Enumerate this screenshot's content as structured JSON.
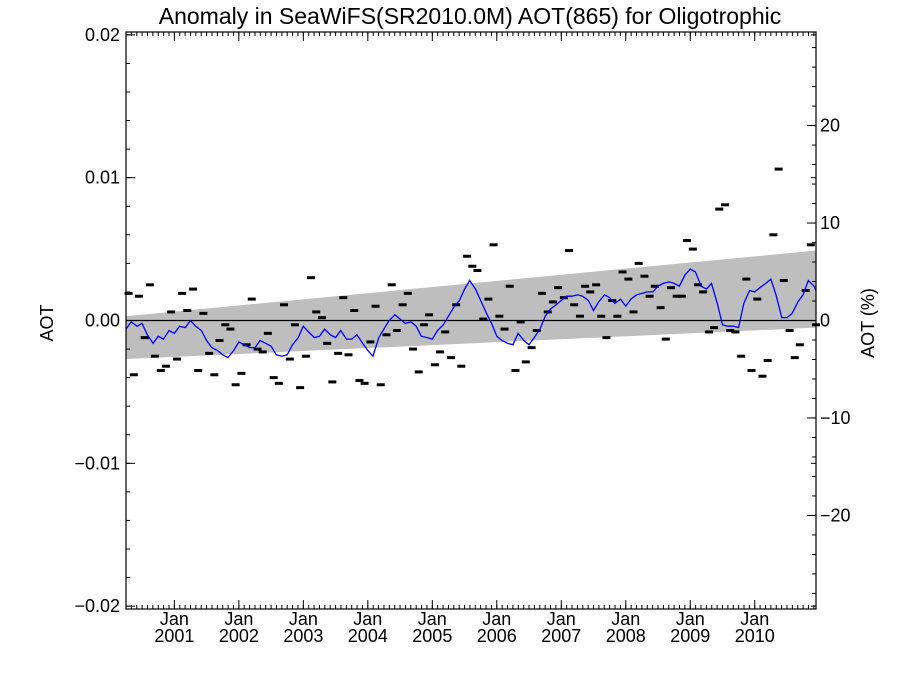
{
  "chart_data": {
    "type": "scatter",
    "title": "Anomaly in SeaWiFS(SR2010.0M) AOT(865) for Oligotrophic",
    "ylabel_left": "AOT",
    "ylabel_right": "AOT (%)",
    "xlabel": "",
    "x_range": [
      2000.25,
      2010.95
    ],
    "ylim": [
      -0.0202,
      0.0202
    ],
    "ylim_right_percent": [
      -29.6,
      29.6
    ],
    "left_ticks": [
      "0.02",
      "0.01",
      "0.00",
      "−0.01",
      "−0.02"
    ],
    "left_tick_values": [
      0.02,
      0.01,
      0.0,
      -0.01,
      -0.02
    ],
    "right_ticks": [
      "20",
      "10",
      "0",
      "−10",
      "−20"
    ],
    "right_tick_values": [
      20,
      10,
      0,
      -10,
      -20
    ],
    "x_ticks": [
      {
        "value": 2001.0,
        "month": "Jan",
        "year": "2001"
      },
      {
        "value": 2002.0,
        "month": "Jan",
        "year": "2002"
      },
      {
        "value": 2003.0,
        "month": "Jan",
        "year": "2003"
      },
      {
        "value": 2004.0,
        "month": "Jan",
        "year": "2004"
      },
      {
        "value": 2005.0,
        "month": "Jan",
        "year": "2005"
      },
      {
        "value": 2006.0,
        "month": "Jan",
        "year": "2006"
      },
      {
        "value": 2007.0,
        "month": "Jan",
        "year": "2007"
      },
      {
        "value": 2008.0,
        "month": "Jan",
        "year": "2008"
      },
      {
        "value": 2009.0,
        "month": "Jan",
        "year": "2009"
      },
      {
        "value": 2010.0,
        "month": "Jan",
        "year": "2010"
      }
    ],
    "trend_band": {
      "x": [
        2000.25,
        2010.95
      ],
      "upper": [
        0.0003,
        0.0049
      ],
      "lower": [
        -0.0027,
        -0.0005
      ],
      "color": "#bebebe"
    },
    "zero_line": 0.0,
    "series": [
      {
        "kind": "markers",
        "color": "#000000",
        "points": [
          [
            2000.29,
            0.0019
          ],
          [
            2000.37,
            -0.0038
          ],
          [
            2000.45,
            0.0017
          ],
          [
            2000.54,
            -0.0012
          ],
          [
            2000.62,
            0.0025
          ],
          [
            2000.7,
            -0.0025
          ],
          [
            2000.79,
            -0.0035
          ],
          [
            2000.87,
            -0.0032
          ],
          [
            2000.95,
            0.0006
          ],
          [
            2001.04,
            -0.0027
          ],
          [
            2001.12,
            0.0019
          ],
          [
            2001.2,
            0.0007
          ],
          [
            2001.29,
            0.0022
          ],
          [
            2001.37,
            -0.0035
          ],
          [
            2001.45,
            0.0005
          ],
          [
            2001.54,
            -0.0023
          ],
          [
            2001.62,
            -0.0038
          ],
          [
            2001.7,
            -0.0014
          ],
          [
            2001.79,
            -0.0003
          ],
          [
            2001.87,
            -0.0006
          ],
          [
            2001.95,
            -0.0045
          ],
          [
            2002.04,
            -0.0037
          ],
          [
            2002.12,
            -0.0017
          ],
          [
            2002.2,
            0.0015
          ],
          [
            2002.29,
            -0.002
          ],
          [
            2002.37,
            -0.0022
          ],
          [
            2002.45,
            -0.0009
          ],
          [
            2002.54,
            -0.004
          ],
          [
            2002.62,
            -0.0044
          ],
          [
            2002.7,
            0.0011
          ],
          [
            2002.79,
            -0.0027
          ],
          [
            2002.87,
            -0.0003
          ],
          [
            2002.95,
            -0.0047
          ],
          [
            2003.04,
            -0.0025
          ],
          [
            2003.12,
            0.003
          ],
          [
            2003.2,
            0.0006
          ],
          [
            2003.29,
            0.0002
          ],
          [
            2003.37,
            -0.0016
          ],
          [
            2003.45,
            -0.0043
          ],
          [
            2003.54,
            -0.0023
          ],
          [
            2003.62,
            0.0016
          ],
          [
            2003.7,
            -0.0024
          ],
          [
            2003.79,
            0.0007
          ],
          [
            2003.87,
            -0.0042
          ],
          [
            2003.95,
            -0.0044
          ],
          [
            2004.04,
            -0.0015
          ],
          [
            2004.12,
            0.001
          ],
          [
            2004.2,
            -0.0045
          ],
          [
            2004.29,
            -0.001
          ],
          [
            2004.37,
            0.0025
          ],
          [
            2004.45,
            -0.0007
          ],
          [
            2004.54,
            0.0011
          ],
          [
            2004.62,
            0.0019
          ],
          [
            2004.7,
            -0.002
          ],
          [
            2004.79,
            -0.0036
          ],
          [
            2004.87,
            -0.0003
          ],
          [
            2004.95,
            0.0004
          ],
          [
            2005.04,
            -0.0031
          ],
          [
            2005.12,
            -0.0022
          ],
          [
            2005.2,
            -0.0008
          ],
          [
            2005.29,
            -0.0026
          ],
          [
            2005.37,
            0.0011
          ],
          [
            2005.45,
            -0.0032
          ],
          [
            2005.54,
            0.0045
          ],
          [
            2005.62,
            0.0038
          ],
          [
            2005.7,
            0.0035
          ],
          [
            2005.79,
            0.0001
          ],
          [
            2005.87,
            0.0015
          ],
          [
            2005.95,
            0.0053
          ],
          [
            2006.04,
            0.0003
          ],
          [
            2006.12,
            -0.0006
          ],
          [
            2006.2,
            0.0024
          ],
          [
            2006.29,
            -0.0035
          ],
          [
            2006.37,
            -0.0001
          ],
          [
            2006.45,
            -0.0029
          ],
          [
            2006.54,
            -0.0019
          ],
          [
            2006.62,
            -0.0007
          ],
          [
            2006.7,
            0.0019
          ],
          [
            2006.79,
            0.0006
          ],
          [
            2006.87,
            0.0013
          ],
          [
            2006.95,
            0.0023
          ],
          [
            2007.04,
            0.0016
          ],
          [
            2007.12,
            0.0049
          ],
          [
            2007.2,
            0.0011
          ],
          [
            2007.29,
            0.0003
          ],
          [
            2007.37,
            0.0024
          ],
          [
            2007.45,
            0.002
          ],
          [
            2007.54,
            0.0025
          ],
          [
            2007.62,
            0.0003
          ],
          [
            2007.7,
            -0.0012
          ],
          [
            2007.79,
            0.0014
          ],
          [
            2007.87,
            0.0003
          ],
          [
            2007.95,
            0.0034
          ],
          [
            2008.04,
            0.0029
          ],
          [
            2008.12,
            0.0006
          ],
          [
            2008.2,
            0.004
          ],
          [
            2008.29,
            0.0031
          ],
          [
            2008.37,
            0.0017
          ],
          [
            2008.45,
            0.0024
          ],
          [
            2008.54,
            0.0009
          ],
          [
            2008.62,
            -0.0013
          ],
          [
            2008.7,
            0.0023
          ],
          [
            2008.79,
            0.0017
          ],
          [
            2008.87,
            0.0017
          ],
          [
            2008.95,
            0.0056
          ],
          [
            2009.04,
            0.005
          ],
          [
            2009.12,
            0.0025
          ],
          [
            2009.2,
            0.002
          ],
          [
            2009.29,
            -0.0008
          ],
          [
            2009.37,
            -0.0005
          ],
          [
            2009.45,
            0.0078
          ],
          [
            2009.54,
            0.0081
          ],
          [
            2009.62,
            -0.0007
          ],
          [
            2009.7,
            -0.0008
          ],
          [
            2009.79,
            -0.0025
          ],
          [
            2009.87,
            0.0029
          ],
          [
            2009.95,
            -0.0035
          ],
          [
            2010.04,
            0.0015
          ],
          [
            2010.12,
            -0.0039
          ],
          [
            2010.2,
            -0.0028
          ],
          [
            2010.29,
            0.006
          ],
          [
            2010.37,
            0.0106
          ],
          [
            2010.45,
            0.0028
          ],
          [
            2010.54,
            -0.0007
          ],
          [
            2010.62,
            -0.0026
          ],
          [
            2010.7,
            -0.0017
          ],
          [
            2010.79,
            0.0021
          ],
          [
            2010.87,
            0.0053
          ],
          [
            2010.95,
            -0.0003
          ]
        ]
      },
      {
        "kind": "line",
        "color": "#0000ff",
        "points": [
          [
            2000.25,
            -0.0006
          ],
          [
            2000.33,
            -0.0001
          ],
          [
            2000.42,
            -0.0004
          ],
          [
            2000.5,
            -0.0002
          ],
          [
            2000.58,
            -0.001
          ],
          [
            2000.67,
            -0.0016
          ],
          [
            2000.75,
            -0.0011
          ],
          [
            2000.83,
            -0.0013
          ],
          [
            2000.92,
            -0.0007
          ],
          [
            2001.0,
            -0.0009
          ],
          [
            2001.08,
            -0.0004
          ],
          [
            2001.17,
            -0.0005
          ],
          [
            2001.25,
            0.0
          ],
          [
            2001.33,
            -0.0004
          ],
          [
            2001.42,
            -0.0007
          ],
          [
            2001.5,
            -0.0014
          ],
          [
            2001.58,
            -0.0019
          ],
          [
            2001.67,
            -0.0021
          ],
          [
            2001.75,
            -0.0024
          ],
          [
            2001.83,
            -0.0026
          ],
          [
            2001.92,
            -0.0021
          ],
          [
            2002.0,
            -0.0015
          ],
          [
            2002.08,
            -0.0017
          ],
          [
            2002.17,
            -0.0019
          ],
          [
            2002.25,
            -0.0019
          ],
          [
            2002.33,
            -0.0014
          ],
          [
            2002.42,
            -0.0016
          ],
          [
            2002.5,
            -0.0018
          ],
          [
            2002.58,
            -0.0024
          ],
          [
            2002.67,
            -0.0025
          ],
          [
            2002.75,
            -0.0024
          ],
          [
            2002.83,
            -0.0017
          ],
          [
            2002.92,
            -0.0012
          ],
          [
            2003.0,
            -0.0004
          ],
          [
            2003.08,
            -0.0008
          ],
          [
            2003.17,
            -0.0012
          ],
          [
            2003.25,
            -0.0011
          ],
          [
            2003.33,
            -0.0006
          ],
          [
            2003.42,
            -0.001
          ],
          [
            2003.5,
            -0.0012
          ],
          [
            2003.58,
            -0.0007
          ],
          [
            2003.67,
            -0.0013
          ],
          [
            2003.75,
            -0.0013
          ],
          [
            2003.83,
            -0.001
          ],
          [
            2003.92,
            -0.0016
          ],
          [
            2004.0,
            -0.0021
          ],
          [
            2004.08,
            -0.0025
          ],
          [
            2004.17,
            -0.0012
          ],
          [
            2004.25,
            -0.0006
          ],
          [
            2004.33,
            0.0
          ],
          [
            2004.42,
            0.0004
          ],
          [
            2004.5,
            0.0001
          ],
          [
            2004.58,
            -0.0002
          ],
          [
            2004.67,
            -0.0001
          ],
          [
            2004.75,
            -0.0004
          ],
          [
            2004.83,
            -0.0011
          ],
          [
            2004.92,
            -0.0012
          ],
          [
            2005.0,
            -0.0013
          ],
          [
            2005.08,
            -0.0007
          ],
          [
            2005.17,
            -0.0003
          ],
          [
            2005.25,
            0.0003
          ],
          [
            2005.33,
            0.0009
          ],
          [
            2005.42,
            0.0014
          ],
          [
            2005.5,
            0.0022
          ],
          [
            2005.58,
            0.0028
          ],
          [
            2005.67,
            0.0022
          ],
          [
            2005.75,
            0.0014
          ],
          [
            2005.83,
            0.0006
          ],
          [
            2005.92,
            -0.0002
          ],
          [
            2006.0,
            -0.0011
          ],
          [
            2006.08,
            -0.0014
          ],
          [
            2006.17,
            -0.0016
          ],
          [
            2006.25,
            -0.0017
          ],
          [
            2006.33,
            -0.0009
          ],
          [
            2006.42,
            -0.0014
          ],
          [
            2006.5,
            -0.0017
          ],
          [
            2006.58,
            -0.0012
          ],
          [
            2006.67,
            -0.0006
          ],
          [
            2006.75,
            0.0003
          ],
          [
            2006.83,
            0.0008
          ],
          [
            2006.92,
            0.0011
          ],
          [
            2007.0,
            0.0014
          ],
          [
            2007.08,
            0.0017
          ],
          [
            2007.17,
            0.0017
          ],
          [
            2007.25,
            0.0018
          ],
          [
            2007.33,
            0.0017
          ],
          [
            2007.42,
            0.0014
          ],
          [
            2007.5,
            0.0007
          ],
          [
            2007.58,
            0.0013
          ],
          [
            2007.67,
            0.0018
          ],
          [
            2007.75,
            0.0016
          ],
          [
            2007.83,
            0.0012
          ],
          [
            2007.92,
            0.0015
          ],
          [
            2008.0,
            0.001
          ],
          [
            2008.08,
            0.0015
          ],
          [
            2008.17,
            0.0018
          ],
          [
            2008.25,
            0.0019
          ],
          [
            2008.33,
            0.002
          ],
          [
            2008.42,
            0.002
          ],
          [
            2008.5,
            0.0024
          ],
          [
            2008.58,
            0.0026
          ],
          [
            2008.67,
            0.0027
          ],
          [
            2008.75,
            0.0026
          ],
          [
            2008.83,
            0.0024
          ],
          [
            2008.92,
            0.0032
          ],
          [
            2009.0,
            0.0036
          ],
          [
            2009.08,
            0.0034
          ],
          [
            2009.17,
            0.0024
          ],
          [
            2009.25,
            0.0022
          ],
          [
            2009.33,
            0.0026
          ],
          [
            2009.42,
            0.0012
          ],
          [
            2009.5,
            -0.0003
          ],
          [
            2009.58,
            -0.0004
          ],
          [
            2009.67,
            -0.0004
          ],
          [
            2009.75,
            -0.0005
          ],
          [
            2009.83,
            0.0012
          ],
          [
            2009.92,
            0.0021
          ],
          [
            2010.0,
            0.002
          ],
          [
            2010.08,
            0.0023
          ],
          [
            2010.17,
            0.0026
          ],
          [
            2010.25,
            0.0029
          ],
          [
            2010.33,
            0.0018
          ],
          [
            2010.42,
            0.0002
          ],
          [
            2010.5,
            0.0002
          ],
          [
            2010.58,
            0.0005
          ],
          [
            2010.67,
            0.0013
          ],
          [
            2010.75,
            0.0018
          ],
          [
            2010.83,
            0.0028
          ],
          [
            2010.92,
            0.0024
          ],
          [
            2010.95,
            0.0021
          ]
        ]
      }
    ]
  }
}
